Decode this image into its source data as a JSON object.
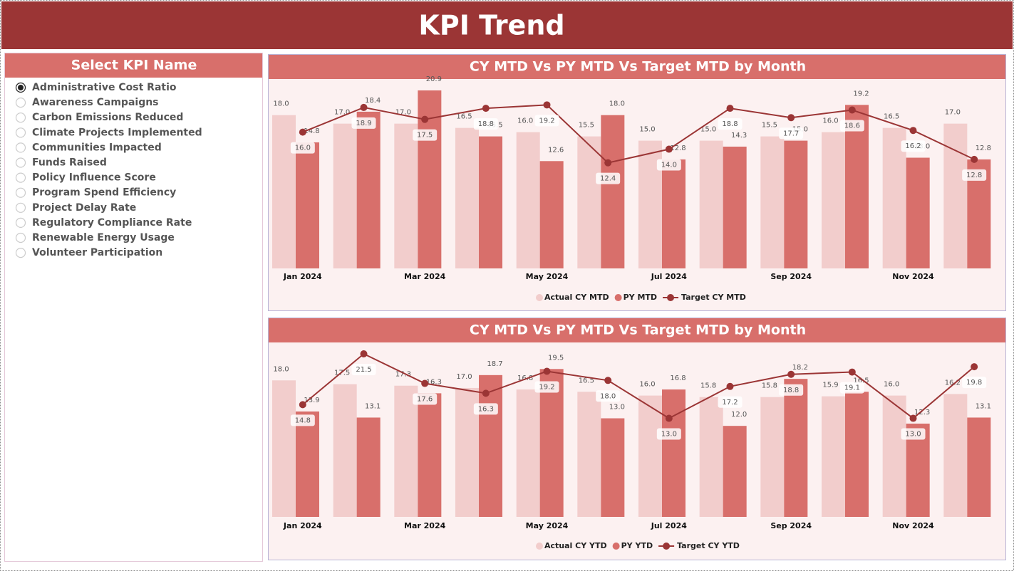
{
  "header": {
    "title": "KPI Trend"
  },
  "slicer": {
    "title": "Select KPI Name",
    "selected_index": 0,
    "items": [
      "Administrative Cost Ratio",
      "Awareness Campaigns",
      "Carbon Emissions Reduced",
      "Climate Projects Implemented",
      "Communities Impacted",
      "Funds Raised",
      "Policy Influence Score",
      "Program Spend Efficiency",
      "Project Delay Rate",
      "Regulatory Compliance Rate",
      "Renewable Energy Usage",
      "Volunteer Participation"
    ]
  },
  "chart_data": [
    {
      "type": "combo",
      "title": "CY MTD Vs PY MTD Vs Target MTD by Month",
      "categories": [
        "Jan 2024",
        null,
        "Mar 2024",
        null,
        "May 2024",
        null,
        "Jul 2024",
        null,
        "Sep 2024",
        null,
        "Nov 2024",
        null
      ],
      "series": [
        {
          "name": "Actual CY MTD",
          "type": "bar",
          "color": "#f2cdcc",
          "values": [
            18.0,
            17.0,
            17.0,
            16.5,
            16.0,
            15.5,
            15.0,
            15.0,
            15.5,
            16.0,
            16.5,
            17.0
          ],
          "value_labels": [
            "18.0",
            "17.0",
            "17.0",
            "16.5",
            "16.0",
            "15.5",
            "15.0",
            "15.0",
            "15.5",
            "16.0",
            "16.5",
            "17.0"
          ]
        },
        {
          "name": "PY MTD",
          "type": "bar",
          "color": "#d86f6b",
          "values": [
            14.8,
            18.4,
            20.9,
            15.5,
            12.6,
            18.0,
            12.8,
            14.3,
            15.0,
            19.2,
            13.0,
            12.8
          ],
          "value_labels": [
            "14.8",
            "18.4",
            "20.9",
            "15.5",
            "12.6",
            "18.0",
            "12.8",
            "14.3",
            "15.0",
            "19.2",
            "13.0",
            "12.8"
          ]
        },
        {
          "name": "Target CY MTD",
          "type": "line",
          "color": "#9b3535",
          "values": [
            16.0,
            18.9,
            17.5,
            18.8,
            19.2,
            12.4,
            14.0,
            18.8,
            17.7,
            18.6,
            16.2,
            12.8
          ],
          "value_labels": [
            "16.0",
            "18.9",
            "17.5",
            "18.8",
            "19.2",
            "12.4",
            "14.0",
            "18.8",
            "17.7",
            "18.6",
            "16.2",
            "12.8"
          ]
        }
      ]
    },
    {
      "type": "combo",
      "title": "CY MTD Vs PY MTD Vs Target MTD by Month",
      "categories": [
        "Jan 2024",
        null,
        "Mar 2024",
        null,
        "May 2024",
        null,
        "Jul 2024",
        null,
        "Sep 2024",
        null,
        "Nov 2024",
        null
      ],
      "series": [
        {
          "name": "Actual CY YTD",
          "type": "bar",
          "color": "#f2cdcc",
          "values": [
            18.0,
            17.5,
            17.3,
            17.0,
            16.8,
            16.5,
            16.0,
            15.8,
            15.8,
            15.9,
            16.0,
            16.2
          ],
          "value_labels": [
            "18.0",
            "17.5",
            "17.3",
            "17.0",
            "16.8",
            "16.5",
            "16.0",
            "15.8",
            "15.8",
            "15.9",
            "16.0",
            "16.2"
          ]
        },
        {
          "name": "PY YTD",
          "type": "bar",
          "color": "#d86f6b",
          "values": [
            13.9,
            13.1,
            16.3,
            18.7,
            19.5,
            13.0,
            16.8,
            12.0,
            18.2,
            16.5,
            12.3,
            13.1
          ],
          "value_labels": [
            "13.9",
            "13.1",
            "16.3",
            "18.7",
            "19.5",
            "13.0",
            "16.8",
            "12.0",
            "18.2",
            "16.5",
            "12.3",
            "13.1"
          ]
        },
        {
          "name": "Target CY YTD",
          "type": "line",
          "color": "#9b3535",
          "values": [
            14.8,
            21.5,
            17.6,
            16.3,
            19.2,
            18.0,
            13.0,
            17.2,
            18.8,
            19.1,
            13.0,
            19.8
          ],
          "value_labels": [
            "14.8",
            "21.5",
            "17.6",
            "16.3",
            "19.2",
            "18.0",
            "13.0",
            "17.2",
            "18.8",
            "19.1",
            "13.0",
            "19.8"
          ]
        }
      ]
    }
  ]
}
